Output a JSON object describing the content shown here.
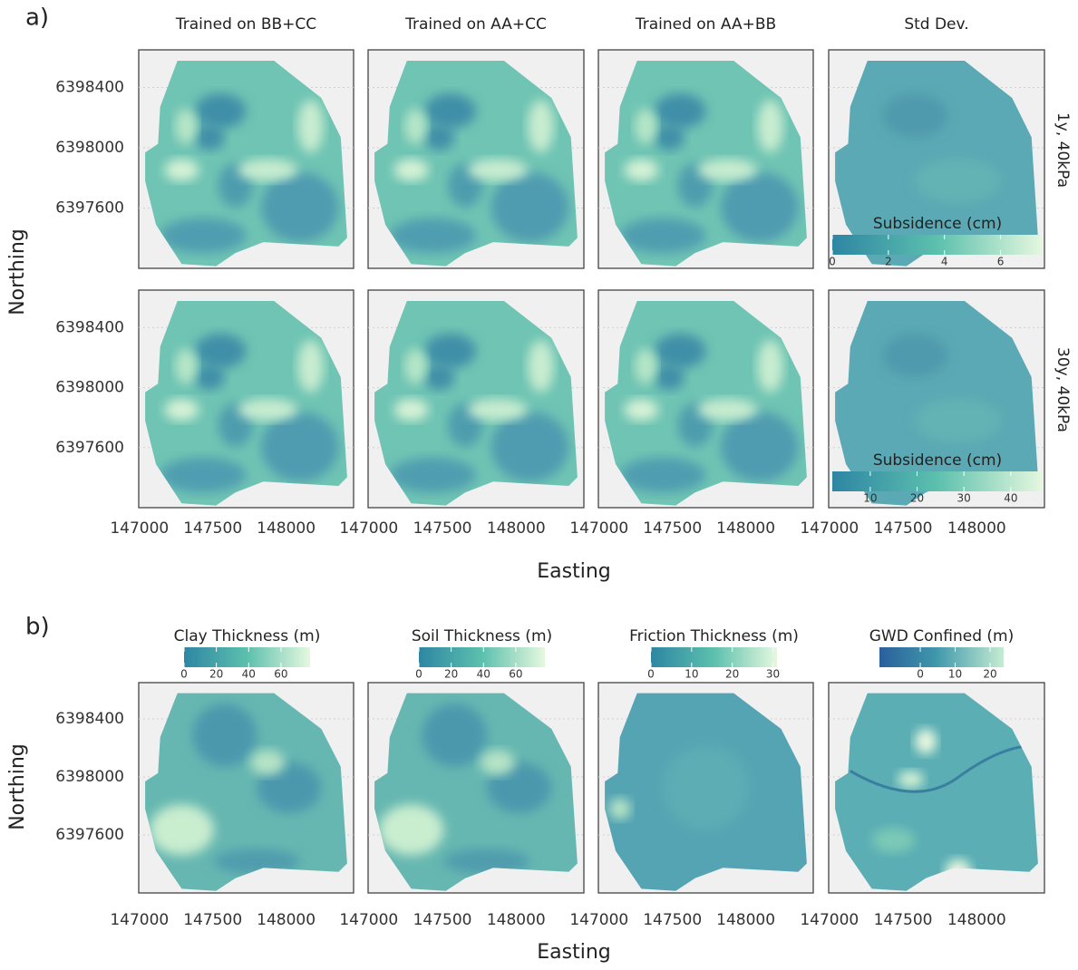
{
  "figure": {
    "xlim": [
      146995,
      148460
    ],
    "xticks": [
      147000,
      147500,
      148000
    ],
    "ylim": [
      6397200,
      6398650
    ],
    "yticks": [
      6397600,
      6398000,
      6398400
    ],
    "panel_a": {
      "label": "a)",
      "columns": [
        "Trained on BB+CC",
        "Trained on AA+CC",
        "Trained on AA+BB",
        "Std Dev."
      ],
      "rows": [
        "1y, 40kPa",
        "30y, 40kPa"
      ],
      "ylabel": "Northing",
      "xlabel": "Easting",
      "colorbars": [
        {
          "title": "Subsidence (cm)",
          "lim": [
            0,
            7.5
          ],
          "ticks": [
            0,
            2,
            4,
            6
          ]
        },
        {
          "title": "Subsidence (cm)",
          "lim": [
            1.9,
            46.8
          ],
          "ticks": [
            10,
            20,
            30,
            40
          ]
        }
      ]
    },
    "panel_b": {
      "label": "b)",
      "ylabel": "Northing",
      "xlabel": "Easting",
      "colorbars": [
        {
          "title": "Clay Thickness (m)",
          "lim": [
            0,
            78
          ],
          "ticks": [
            0,
            20,
            40,
            60
          ]
        },
        {
          "title": "Soil Thickness (m)",
          "lim": [
            0,
            78
          ],
          "ticks": [
            0,
            20,
            40,
            60
          ]
        },
        {
          "title": "Friction Thickness (m)",
          "lim": [
            0,
            31
          ],
          "ticks": [
            0,
            10,
            20,
            30
          ]
        },
        {
          "title": "GWD Confined (m)",
          "lim": [
            -11.7,
            23.9
          ],
          "ticks": [
            0,
            10,
            20
          ]
        }
      ]
    }
  }
}
